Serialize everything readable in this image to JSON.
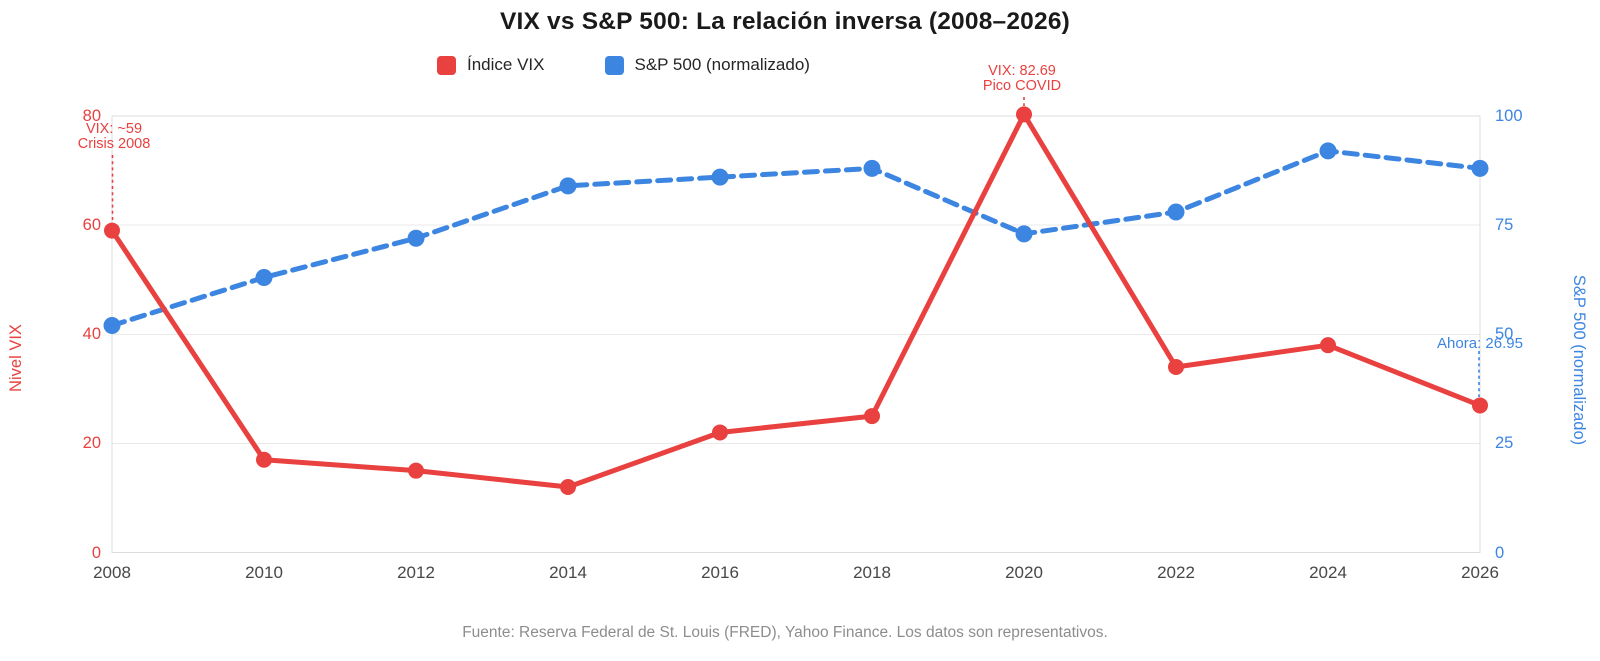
{
  "title": "VIX vs S&P 500: La relación inversa (2008–2026)",
  "legend": [
    {
      "label": "Índice VIX",
      "color": "#E8413F"
    },
    {
      "label": "S&P 500 (normalizado)",
      "color": "#3C85E1"
    }
  ],
  "axes": {
    "left": {
      "label": "Nivel VIX",
      "color": "#E8413F",
      "ticks": [
        "80",
        "60",
        "40",
        "20",
        "0"
      ]
    },
    "right": {
      "label": "S&P 500 (normalizado)",
      "color": "#3C85E1",
      "ticks": [
        "100",
        "75",
        "50",
        "25",
        "0"
      ]
    },
    "x": {
      "ticks": [
        "2008",
        "2010",
        "2012",
        "2014",
        "2016",
        "2018",
        "2020",
        "2022",
        "2024",
        "2026"
      ]
    }
  },
  "annotations": [
    {
      "id": "crisis-2008",
      "lines": [
        "VIX: ~59",
        "Crisis 2008"
      ],
      "color": "#E8413F"
    },
    {
      "id": "pico-covid",
      "lines": [
        "VIX: 82.69",
        "Pico COVID"
      ],
      "color": "#E8413F"
    },
    {
      "id": "ahora",
      "lines": [
        "Ahora: 26.95"
      ],
      "color": "#3C85E1"
    }
  ],
  "footer": "Fuente: Reserva Federal de St. Louis (FRED), Yahoo Finance. Los datos son representativos.",
  "colors": {
    "grid": "#e9e9e9",
    "border": "#dcdcdc"
  },
  "chart_data": {
    "type": "line",
    "x": [
      2008,
      2010,
      2012,
      2014,
      2016,
      2018,
      2020,
      2022,
      2024,
      2026
    ],
    "series": [
      {
        "name": "Índice VIX",
        "axis": "left",
        "style": "solid",
        "color": "#E8413F",
        "values": [
          59,
          17,
          15,
          12,
          22,
          25,
          82.69,
          34,
          38,
          26.95
        ]
      },
      {
        "name": "S&P 500 (normalizado)",
        "axis": "right",
        "style": "dashed",
        "color": "#3C85E1",
        "values": [
          52,
          63,
          72,
          84,
          86,
          88,
          73,
          78,
          92,
          88
        ]
      }
    ],
    "title": "VIX vs S&P 500: La relación inversa (2008–2026)",
    "xlabel": "",
    "ylabel_left": "Nivel VIX",
    "ylabel_right": "S&P 500 (normalizado)",
    "left_ylim": [
      0,
      80
    ],
    "right_ylim": [
      0,
      100
    ],
    "grid": true,
    "legend_position": "top"
  }
}
